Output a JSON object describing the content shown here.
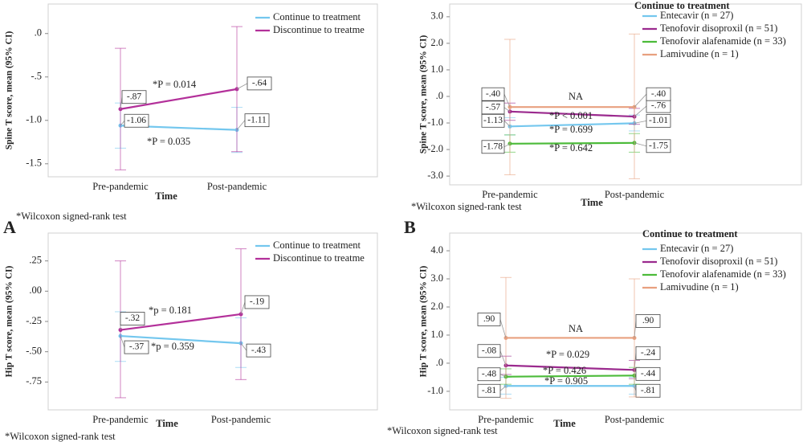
{
  "panel_labels": [
    "A",
    "B"
  ],
  "chart_data": [
    {
      "type": "line",
      "y_label": "Spine T score, mean (95% CI)",
      "x_label": "Time",
      "footnote": "*Wilcoxon signed-rank test",
      "categories": [
        "Pre-pandemic",
        "Post-pandemic"
      ],
      "ylim": [
        -1.65,
        0.34
      ],
      "yticks": [
        {
          "value": 0,
          "label": ".0"
        },
        {
          "value": -0.5,
          "label": "-.5"
        },
        {
          "value": -1,
          "label": "-1.0"
        },
        {
          "value": -1.5,
          "label": "-1.5"
        }
      ],
      "series": [
        {
          "name": "Continue to treatment",
          "color": "#74c7ee",
          "values": [
            -1.06,
            -1.11
          ],
          "value_labels": [
            "-1.06",
            "-1.11"
          ],
          "ci_low": [
            -1.32,
            -1.37
          ],
          "ci_high": [
            -0.8,
            -0.85
          ]
        },
        {
          "name": "Discontinue to treatme",
          "color": "#b3309a",
          "values": [
            -0.87,
            -0.64
          ],
          "value_labels": [
            "-.87",
            "-.64"
          ],
          "ci_low": [
            -1.57,
            -1.36
          ],
          "ci_high": [
            -0.17,
            0.08
          ]
        }
      ],
      "annotations": [
        "*P = 0.014",
        "*P = 0.035"
      ]
    },
    {
      "type": "line",
      "y_label": "Spine T score, mean (95% CI)",
      "x_label": "Time",
      "footnote": "*Wilcoxon signed-rank test",
      "legend_title": "Continue to treatment",
      "categories": [
        "Pre-pandemic",
        "Post-pandemic"
      ],
      "ylim": [
        -3.33,
        3.48
      ],
      "yticks": [
        {
          "value": 3,
          "label": "3.0"
        },
        {
          "value": 2,
          "label": "2.0"
        },
        {
          "value": 1,
          "label": "1.0"
        },
        {
          "value": 0,
          "label": ".0"
        },
        {
          "value": -1,
          "label": "-1.0"
        },
        {
          "value": -2,
          "label": "-2.0"
        },
        {
          "value": -3,
          "label": "-3.0"
        }
      ],
      "series": [
        {
          "name": "Entecavir (n = 27)",
          "color": "#74c7ee",
          "values": [
            -1.13,
            -1.01
          ],
          "value_labels": [
            "-1.13",
            "-1.01"
          ],
          "ci_low": [
            -1.45,
            -1.3
          ],
          "ci_high": [
            -0.8,
            -0.7
          ]
        },
        {
          "name": "Tenofovir disoproxil (n = 51)",
          "color": "#9b2a8e",
          "values": [
            -0.57,
            -0.76
          ],
          "value_labels": [
            "-.57",
            "-.76"
          ],
          "ci_low": [
            -0.9,
            -1.05
          ],
          "ci_high": [
            -0.25,
            -0.45
          ]
        },
        {
          "name": "Tenofovir alafenamide (n = 33)",
          "color": "#4cbb3a",
          "values": [
            -1.78,
            -1.75
          ],
          "value_labels": [
            "-1.78",
            "-1.75"
          ],
          "ci_low": [
            -2.1,
            -2.1
          ],
          "ci_high": [
            -1.45,
            -1.4
          ]
        },
        {
          "name": "Lamivudine (n = 1)",
          "color": "#e8a07f",
          "values": [
            -0.4,
            -0.4
          ],
          "value_labels": [
            "-.40",
            "-.40"
          ],
          "ci_low": [
            -2.95,
            -3.1
          ],
          "ci_high": [
            2.15,
            2.35
          ]
        }
      ],
      "annotations": [
        "NA",
        "*P < 0.001",
        "*P = 0.699",
        "*P = 0.642"
      ]
    },
    {
      "type": "line",
      "y_label": "Hip T score, mean (95% CI)",
      "x_label": "Time",
      "footnote": "*Wilcoxon signed-rank test",
      "categories": [
        "Pre-pandemic",
        "Post-pandemic"
      ],
      "ylim": [
        -0.98,
        0.48
      ],
      "yticks": [
        {
          "value": 0.25,
          "label": ".25"
        },
        {
          "value": 0,
          "label": ".00"
        },
        {
          "value": -0.25,
          "label": "-.25"
        },
        {
          "value": -0.5,
          "label": "-.50"
        },
        {
          "value": -0.75,
          "label": "-.75"
        }
      ],
      "series": [
        {
          "name": "Continue to treatment",
          "color": "#74c7ee",
          "values": [
            -0.37,
            -0.43
          ],
          "value_labels": [
            "-.37",
            "-.43"
          ],
          "ci_low": [
            -0.58,
            -0.63
          ],
          "ci_high": [
            -0.17,
            -0.22
          ]
        },
        {
          "name": "Discontinue to treatme",
          "color": "#b3309a",
          "values": [
            -0.32,
            -0.19
          ],
          "value_labels": [
            "-.32",
            "-.19"
          ],
          "ci_low": [
            -0.88,
            -0.73
          ],
          "ci_high": [
            0.25,
            0.35
          ]
        }
      ],
      "annotations": [
        "*p = 0.181",
        "*p = 0.359"
      ]
    },
    {
      "type": "line",
      "y_label": "Hip T score, mean (95% CI)",
      "x_label": "Time",
      "footnote": "*Wilcoxon signed-rank test",
      "legend_title": "Continue to treatment",
      "categories": [
        "Pre-pandemic",
        "Post-pandemic"
      ],
      "ylim": [
        -1.66,
        4.63
      ],
      "yticks": [
        {
          "value": 4,
          "label": "4.0"
        },
        {
          "value": 3,
          "label": "3.0"
        },
        {
          "value": 2,
          "label": "2.0"
        },
        {
          "value": 1,
          "label": "1.0"
        },
        {
          "value": 0,
          "label": ".0"
        },
        {
          "value": -1,
          "label": "-1.0"
        }
      ],
      "series": [
        {
          "name": "Entecavir (n = 27)",
          "color": "#74c7ee",
          "values": [
            -0.81,
            -0.81
          ],
          "value_labels": [
            "-.81",
            "-.81"
          ],
          "ci_low": [
            -1.1,
            -1.1
          ],
          "ci_high": [
            -0.5,
            -0.5
          ]
        },
        {
          "name": "Tenofovir disoproxil (n = 51)",
          "color": "#9b2a8e",
          "values": [
            -0.08,
            -0.24
          ],
          "value_labels": [
            "-.08",
            "-.24"
          ],
          "ci_low": [
            -0.4,
            -0.55
          ],
          "ci_high": [
            0.25,
            0.1
          ]
        },
        {
          "name": "Tenofovir alafenamide (n = 33)",
          "color": "#4cbb3a",
          "values": [
            -0.48,
            -0.44
          ],
          "value_labels": [
            "-.48",
            "-.44"
          ],
          "ci_low": [
            -0.75,
            -0.75
          ],
          "ci_high": [
            -0.2,
            -0.15
          ]
        },
        {
          "name": "Lamivudine (n = 1)",
          "color": "#e8a07f",
          "values": [
            0.9,
            0.9
          ],
          "value_labels": [
            ".90",
            ".90"
          ],
          "ci_low": [
            -1.25,
            -1.2
          ],
          "ci_high": [
            3.05,
            3.0
          ]
        }
      ],
      "annotations": [
        "NA",
        "*P = 0.029",
        "*P = 0.426",
        "*P = 0.905"
      ]
    }
  ]
}
